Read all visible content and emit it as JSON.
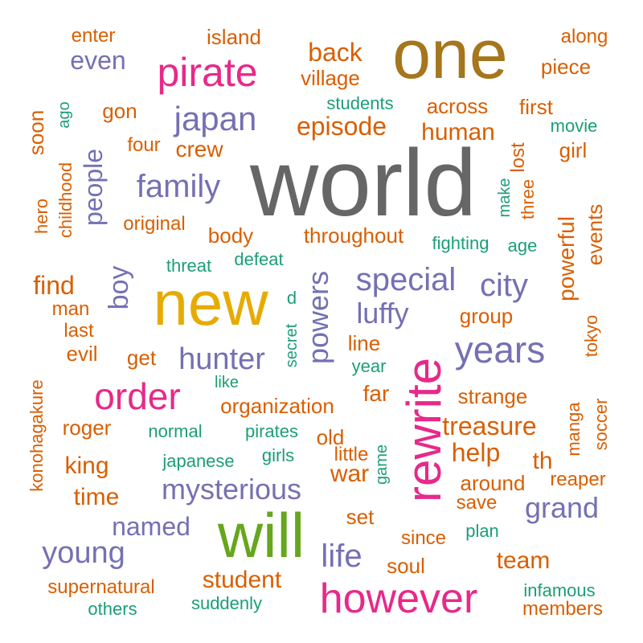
{
  "palette": {
    "gray": "#666666",
    "orange": "#d95f02",
    "purple": "#7570b3",
    "magenta": "#e7298a",
    "green": "#1b9e77",
    "lime": "#66a61e",
    "gold": "#e6ab02",
    "brown": "#a6761d"
  },
  "words": [
    {
      "text": "world",
      "color": "gray"
    },
    {
      "text": "one",
      "color": "brown"
    },
    {
      "text": "new",
      "color": "gold"
    },
    {
      "text": "rewrite",
      "color": "magenta"
    },
    {
      "text": "will",
      "color": "lime"
    },
    {
      "text": "however",
      "color": "magenta"
    },
    {
      "text": "pirate",
      "color": "magenta"
    },
    {
      "text": "years",
      "color": "purple"
    },
    {
      "text": "order",
      "color": "magenta"
    },
    {
      "text": "powers",
      "color": "purple"
    },
    {
      "text": "japan",
      "color": "purple"
    },
    {
      "text": "family",
      "color": "purple"
    },
    {
      "text": "special",
      "color": "purple"
    },
    {
      "text": "city",
      "color": "purple"
    },
    {
      "text": "hunter",
      "color": "purple"
    },
    {
      "text": "mysterious",
      "color": "purple"
    },
    {
      "text": "young",
      "color": "purple"
    },
    {
      "text": "life",
      "color": "purple"
    },
    {
      "text": "grand",
      "color": "purple"
    },
    {
      "text": "named",
      "color": "purple"
    },
    {
      "text": "luffy",
      "color": "purple"
    },
    {
      "text": "boy",
      "color": "purple"
    },
    {
      "text": "people",
      "color": "purple"
    },
    {
      "text": "even",
      "color": "purple"
    },
    {
      "text": "episode",
      "color": "orange"
    },
    {
      "text": "back",
      "color": "orange"
    },
    {
      "text": "treasure",
      "color": "orange"
    },
    {
      "text": "help",
      "color": "orange"
    },
    {
      "text": "student",
      "color": "orange"
    },
    {
      "text": "team",
      "color": "orange"
    },
    {
      "text": "village",
      "color": "orange"
    },
    {
      "text": "island",
      "color": "orange"
    },
    {
      "text": "enter",
      "color": "orange"
    },
    {
      "text": "along",
      "color": "orange"
    },
    {
      "text": "piece",
      "color": "orange"
    },
    {
      "text": "across",
      "color": "orange"
    },
    {
      "text": "first",
      "color": "orange"
    },
    {
      "text": "human",
      "color": "orange"
    },
    {
      "text": "girl",
      "color": "orange"
    },
    {
      "text": "gon",
      "color": "orange"
    },
    {
      "text": "four",
      "color": "orange"
    },
    {
      "text": "crew",
      "color": "orange"
    },
    {
      "text": "original",
      "color": "orange"
    },
    {
      "text": "body",
      "color": "orange"
    },
    {
      "text": "throughout",
      "color": "orange"
    },
    {
      "text": "find",
      "color": "orange"
    },
    {
      "text": "man",
      "color": "orange"
    },
    {
      "text": "last",
      "color": "orange"
    },
    {
      "text": "evil",
      "color": "orange"
    },
    {
      "text": "get",
      "color": "orange"
    },
    {
      "text": "group",
      "color": "orange"
    },
    {
      "text": "line",
      "color": "orange"
    },
    {
      "text": "organization",
      "color": "orange"
    },
    {
      "text": "far",
      "color": "orange"
    },
    {
      "text": "strange",
      "color": "orange"
    },
    {
      "text": "roger",
      "color": "orange"
    },
    {
      "text": "old",
      "color": "orange"
    },
    {
      "text": "king",
      "color": "orange"
    },
    {
      "text": "time",
      "color": "orange"
    },
    {
      "text": "war",
      "color": "orange"
    },
    {
      "text": "th",
      "color": "orange"
    },
    {
      "text": "around",
      "color": "orange"
    },
    {
      "text": "reaper",
      "color": "orange"
    },
    {
      "text": "save",
      "color": "orange"
    },
    {
      "text": "set",
      "color": "orange"
    },
    {
      "text": "since",
      "color": "orange"
    },
    {
      "text": "soul",
      "color": "orange"
    },
    {
      "text": "supernatural",
      "color": "orange"
    },
    {
      "text": "members",
      "color": "orange"
    },
    {
      "text": "lost",
      "color": "orange"
    },
    {
      "text": "soon",
      "color": "orange"
    },
    {
      "text": "hero",
      "color": "orange"
    },
    {
      "text": "childhood",
      "color": "orange"
    },
    {
      "text": "three",
      "color": "orange"
    },
    {
      "text": "powerful",
      "color": "orange"
    },
    {
      "text": "events",
      "color": "orange"
    },
    {
      "text": "tokyo",
      "color": "orange"
    },
    {
      "text": "konohagakure",
      "color": "orange"
    },
    {
      "text": "manga",
      "color": "orange"
    },
    {
      "text": "soccer",
      "color": "orange"
    },
    {
      "text": "little",
      "color": "orange"
    },
    {
      "text": "students",
      "color": "green"
    },
    {
      "text": "movie",
      "color": "green"
    },
    {
      "text": "fighting",
      "color": "green"
    },
    {
      "text": "age",
      "color": "green"
    },
    {
      "text": "threat",
      "color": "green"
    },
    {
      "text": "defeat",
      "color": "green"
    },
    {
      "text": "like",
      "color": "green"
    },
    {
      "text": "year",
      "color": "green"
    },
    {
      "text": "normal",
      "color": "green"
    },
    {
      "text": "pirates",
      "color": "green"
    },
    {
      "text": "girls",
      "color": "green"
    },
    {
      "text": "japanese",
      "color": "green"
    },
    {
      "text": "plan",
      "color": "green"
    },
    {
      "text": "infamous",
      "color": "green"
    },
    {
      "text": "others",
      "color": "green"
    },
    {
      "text": "suddenly",
      "color": "green"
    },
    {
      "text": "ago",
      "color": "green"
    },
    {
      "text": "make",
      "color": "green"
    },
    {
      "text": "d",
      "color": "green"
    },
    {
      "text": "secret",
      "color": "green"
    },
    {
      "text": "game",
      "color": "green"
    }
  ]
}
